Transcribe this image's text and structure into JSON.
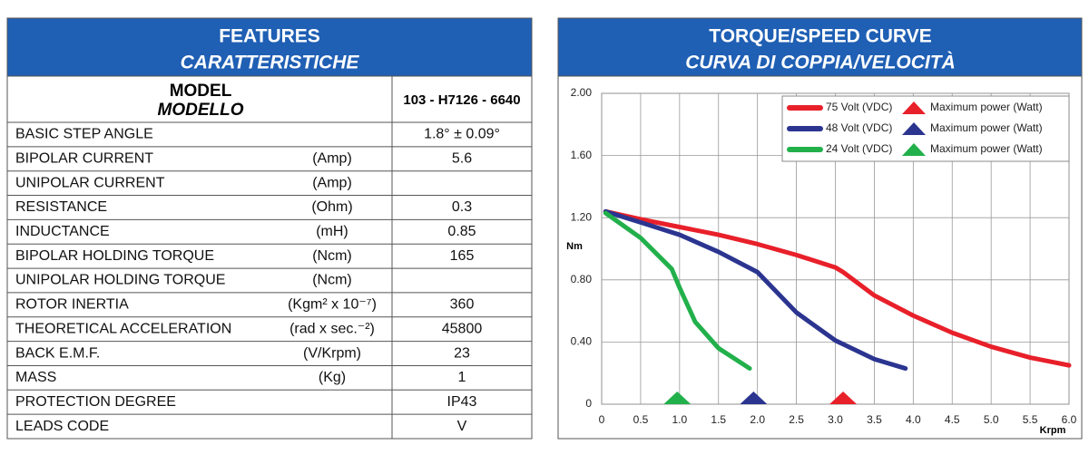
{
  "features": {
    "title": "FEATURES",
    "subtitle": "CARATTERISTICHE",
    "model_label": "MODEL",
    "model_label_it": "MODELLO",
    "model": "103 - H7126 - 6640",
    "rows": [
      [
        "BASIC STEP ANGLE",
        null,
        "1.8° ± 0.09°"
      ],
      [
        "BIPOLAR CURRENT",
        "(Amp)",
        "5.6"
      ],
      [
        "UNIPOLAR CURRENT",
        "(Amp)",
        null
      ],
      [
        "RESISTANCE",
        "(Ohm)",
        "0.3"
      ],
      [
        "INDUCTANCE",
        "(mH)",
        "0.85"
      ],
      [
        "BIPOLAR HOLDING TORQUE",
        "(Ncm)",
        "165"
      ],
      [
        "UNIPOLAR HOLDING TORQUE",
        "(Ncm)",
        null
      ],
      [
        "ROTOR INERTIA",
        "(Kgm² x 10⁻⁷)",
        "360"
      ],
      [
        "THEORETICAL ACCELERATION",
        "(rad x sec.⁻²)",
        "45800"
      ],
      [
        "BACK E.M.F.",
        "(V/Krpm)",
        "23"
      ],
      [
        "MASS",
        "(Kg)",
        "1"
      ],
      [
        "PROTECTION DEGREE",
        null,
        "IP43"
      ],
      [
        "LEADS CODE",
        null,
        "V"
      ]
    ]
  },
  "chart_data": {
    "type": "line",
    "title": "TORQUE/SPEED CURVE",
    "subtitle": "CURVA DI COPPIA/VELOCITÀ",
    "y_label": "Nm",
    "x_label": "Krpm",
    "xlim": [
      0,
      6
    ],
    "ylim": [
      0,
      2
    ],
    "xticks": [
      0,
      0.5,
      {
        "value": 1,
        "label": "1.0"
      },
      1.5,
      {
        "value": 2,
        "label": "2.0"
      },
      2.5,
      {
        "value": 3,
        "label": "3.0"
      },
      3.5,
      {
        "value": 4,
        "label": "4.0"
      },
      4.5,
      {
        "value": 5,
        "label": "5.0"
      },
      5.5,
      {
        "value": 6,
        "label": "6.0"
      }
    ],
    "yticks": [
      0,
      {
        "value": 0.4,
        "label": "0.40"
      },
      {
        "value": 0.8,
        "label": "0.80"
      },
      {
        "value": 1.2,
        "label": "1.20"
      },
      {
        "value": 1.6,
        "label": "1.60"
      },
      {
        "value": 2,
        "label": "2.00"
      }
    ],
    "grid": true,
    "legend": "top-right",
    "series": [
      {
        "name": "75 Volt (VDC)",
        "color": "#e8202a",
        "marker_label": "Maximum power (Watt)",
        "max_power_x": 3.1,
        "x": [
          0.05,
          0.5,
          1,
          1.5,
          2,
          2.5,
          3,
          3.1,
          3.5,
          4,
          4.5,
          5,
          5.5,
          6
        ],
        "values": [
          1.24,
          1.19,
          1.14,
          1.09,
          1.03,
          0.96,
          0.88,
          0.85,
          0.7,
          0.57,
          0.46,
          0.37,
          0.3,
          0.25
        ]
      },
      {
        "name": "48 Volt (VDC)",
        "color": "#2b3590",
        "marker_label": "Maximum power (Watt)",
        "max_power_x": 1.95,
        "x": [
          0.05,
          0.5,
          1,
          1.5,
          2,
          2.5,
          3,
          3.5,
          3.9
        ],
        "values": [
          1.24,
          1.17,
          1.09,
          0.98,
          0.85,
          0.59,
          0.41,
          0.29,
          0.23
        ]
      },
      {
        "name": "24 Volt (VDC)",
        "color": "#22b04b",
        "marker_label": "Maximum power (Watt)",
        "max_power_x": 0.97,
        "x": [
          0.05,
          0.5,
          0.9,
          1,
          1.2,
          1.5,
          1.9
        ],
        "values": [
          1.23,
          1.07,
          0.87,
          0.75,
          0.53,
          0.36,
          0.23
        ]
      }
    ]
  }
}
